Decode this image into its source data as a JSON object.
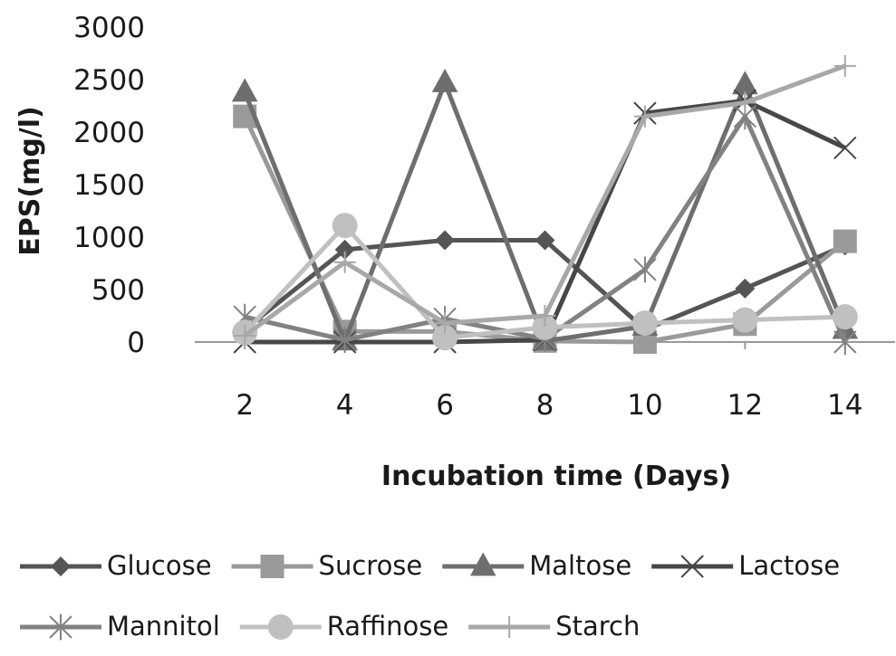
{
  "chart_data": {
    "type": "line",
    "title": "",
    "xlabel": "Incubation time (Days)",
    "ylabel": "EPS(mg/l)",
    "x": [
      2,
      4,
      6,
      8,
      10,
      12,
      14
    ],
    "xlim": [
      1,
      15
    ],
    "ylim": [
      0,
      3000
    ],
    "yticks": [
      0,
      500,
      1000,
      1500,
      2000,
      2500,
      3000
    ],
    "grid": false,
    "legend_position": "bottom",
    "series": [
      {
        "name": "Glucose",
        "values": [
          120,
          880,
          970,
          970,
          120,
          510,
          920
        ],
        "marker": "diamond",
        "color": "#555555"
      },
      {
        "name": "Sucrose",
        "values": [
          2150,
          100,
          100,
          10,
          0,
          170,
          960
        ],
        "marker": "square",
        "color": "#9a9a9a"
      },
      {
        "name": "Maltose",
        "values": [
          2380,
          10,
          2470,
          10,
          150,
          2450,
          120
        ],
        "marker": "triangle",
        "color": "#6e6e6e"
      },
      {
        "name": "Lactose",
        "values": [
          0,
          0,
          0,
          20,
          2180,
          2300,
          1850
        ],
        "marker": "x",
        "color": "#474747"
      },
      {
        "name": "Mannitol",
        "values": [
          240,
          20,
          220,
          30,
          690,
          2150,
          0
        ],
        "marker": "asterisk",
        "color": "#828282"
      },
      {
        "name": "Raffinose",
        "values": [
          90,
          1110,
          40,
          140,
          180,
          210,
          240
        ],
        "marker": "circle",
        "color": "#c0c0c0"
      },
      {
        "name": "Starch",
        "values": [
          60,
          760,
          180,
          250,
          2150,
          2280,
          2630
        ],
        "marker": "plus",
        "color": "#a8a8a8"
      }
    ]
  }
}
